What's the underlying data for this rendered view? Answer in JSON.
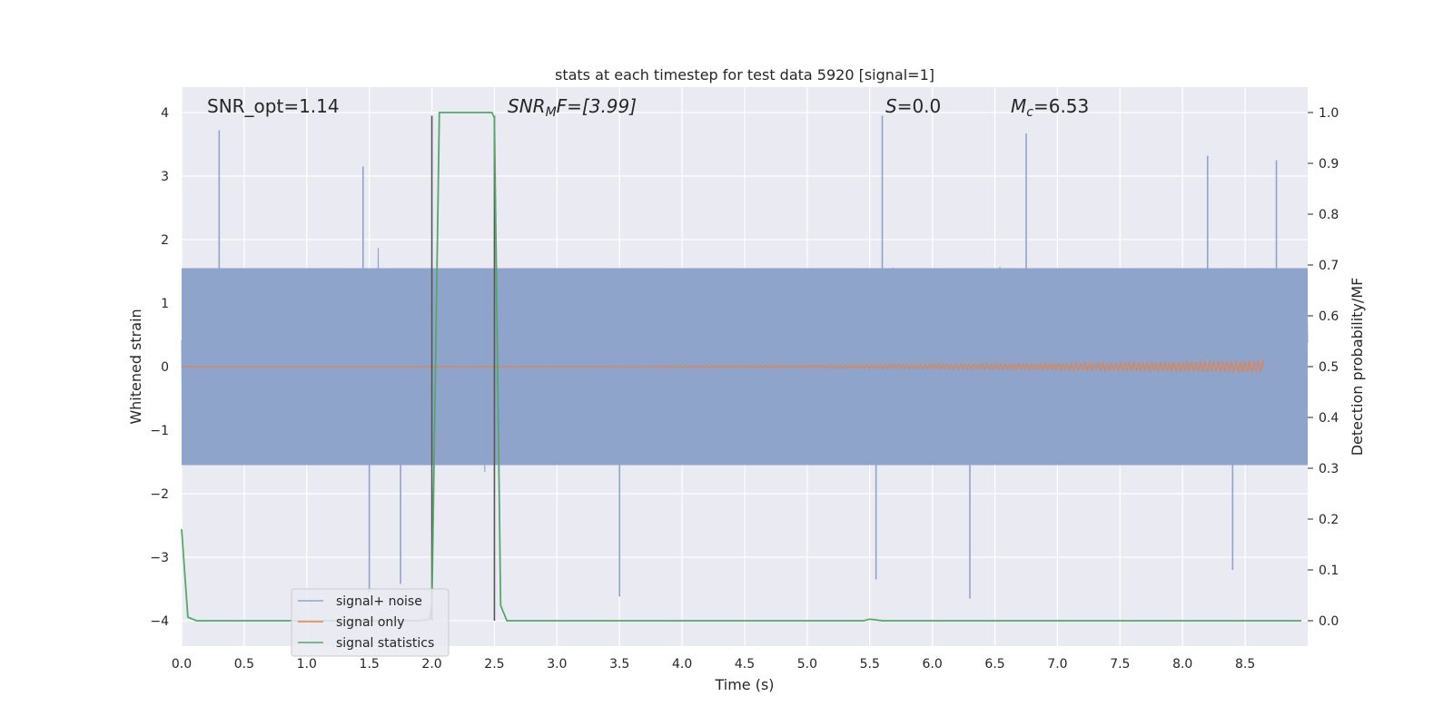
{
  "chart_data": {
    "type": "line",
    "title": "stats at each timestep for test data 5920 [signal=1]",
    "xlabel": "Time (s)",
    "ylabel_left": "Whitened strain",
    "ylabel_right": "Detection probability/MF",
    "xlim": [
      0.0,
      9.0
    ],
    "ylim_left": [
      -4.4,
      4.4
    ],
    "ylim_right": [
      -0.05,
      1.05
    ],
    "x_ticks": [
      0.0,
      0.5,
      1.0,
      1.5,
      2.0,
      2.5,
      3.0,
      3.5,
      4.0,
      4.5,
      5.0,
      5.5,
      6.0,
      6.5,
      7.0,
      7.5,
      8.0,
      8.5
    ],
    "x_tick_labels": [
      "0.0",
      "0.5",
      "1.0",
      "1.5",
      "2.0",
      "2.5",
      "3.0",
      "3.5",
      "4.0",
      "4.5",
      "5.0",
      "5.5",
      "6.0",
      "6.5",
      "7.0",
      "7.5",
      "8.0",
      "8.5"
    ],
    "y_left_ticks": [
      -4,
      -3,
      -2,
      -1,
      0,
      1,
      2,
      3,
      4
    ],
    "y_left_tick_labels": [
      "−4",
      "−3",
      "−2",
      "−1",
      "0",
      "1",
      "2",
      "3",
      "4"
    ],
    "y_right_ticks": [
      0.0,
      0.1,
      0.2,
      0.3,
      0.4,
      0.5,
      0.6,
      0.7,
      0.8,
      0.9,
      1.0
    ],
    "y_right_tick_labels": [
      "0.0",
      "0.1",
      "0.2",
      "0.3",
      "0.4",
      "0.5",
      "0.6",
      "0.7",
      "0.8",
      "0.9",
      "1.0"
    ],
    "grid": true,
    "legend": {
      "placement": "lower-left",
      "entries": [
        "signal+ noise",
        "signal only",
        "signal statistics"
      ]
    },
    "annotations": {
      "snr_opt": "SNR_opt=1.14",
      "snr_mf_sym": "SNR",
      "snr_mf_sub": "M",
      "snr_mf_rest": "F=[3.99]",
      "s_sym": "S",
      "s_val": "=0.0",
      "mc_sym": "M",
      "mc_sub": "c",
      "mc_val": "=6.53"
    },
    "vertical_markers_x": [
      2.0,
      2.5
    ],
    "series": [
      {
        "name": "signal+ noise",
        "axis": "left",
        "style": "dense-noise",
        "x_range": [
          0.0,
          9.0
        ],
        "core_amplitude": 1.55,
        "peak_values": [
          {
            "x": 0.3,
            "y": 3.72
          },
          {
            "x": 1.45,
            "y": 3.15
          },
          {
            "x": 5.6,
            "y": 3.95
          },
          {
            "x": 6.75,
            "y": 3.67
          },
          {
            "x": 8.2,
            "y": 3.32
          },
          {
            "x": 8.75,
            "y": 3.25
          },
          {
            "x": 1.5,
            "y": -3.55
          },
          {
            "x": 1.75,
            "y": -3.42
          },
          {
            "x": 3.5,
            "y": -3.62
          },
          {
            "x": 6.3,
            "y": -3.65
          },
          {
            "x": 8.4,
            "y": -3.2
          },
          {
            "x": 5.55,
            "y": -3.35
          }
        ]
      },
      {
        "name": "signal only",
        "axis": "left",
        "style": "chirp",
        "x_range": [
          0.0,
          8.65
        ],
        "amplitude_start": 0.005,
        "amplitude_end": 0.1
      },
      {
        "name": "signal statistics",
        "axis": "right",
        "x": [
          0.0,
          0.05,
          0.12,
          0.5,
          1.0,
          1.5,
          1.9,
          1.98,
          2.0,
          2.06,
          2.3,
          2.48,
          2.5,
          2.55,
          2.6,
          3.0,
          4.0,
          5.0,
          5.45,
          5.5,
          5.6,
          6.0,
          7.0,
          8.0,
          8.95
        ],
        "y": [
          0.18,
          0.007,
          0.0,
          0.0,
          0.0,
          0.0,
          0.0,
          0.003,
          0.03,
          1.0,
          1.0,
          1.0,
          0.99,
          0.03,
          0.0,
          0.0,
          0.0,
          0.0,
          0.0,
          0.003,
          0.0,
          0.0,
          0.0,
          0.0,
          0.0
        ]
      }
    ]
  },
  "colors": {
    "plot_bg": "#eaeaf2",
    "grid": "#ffffff",
    "noise": "#8fa4cb",
    "signal": "#dd8452",
    "stats": "#55a868",
    "marker": "#555555",
    "text": "#262626"
  }
}
